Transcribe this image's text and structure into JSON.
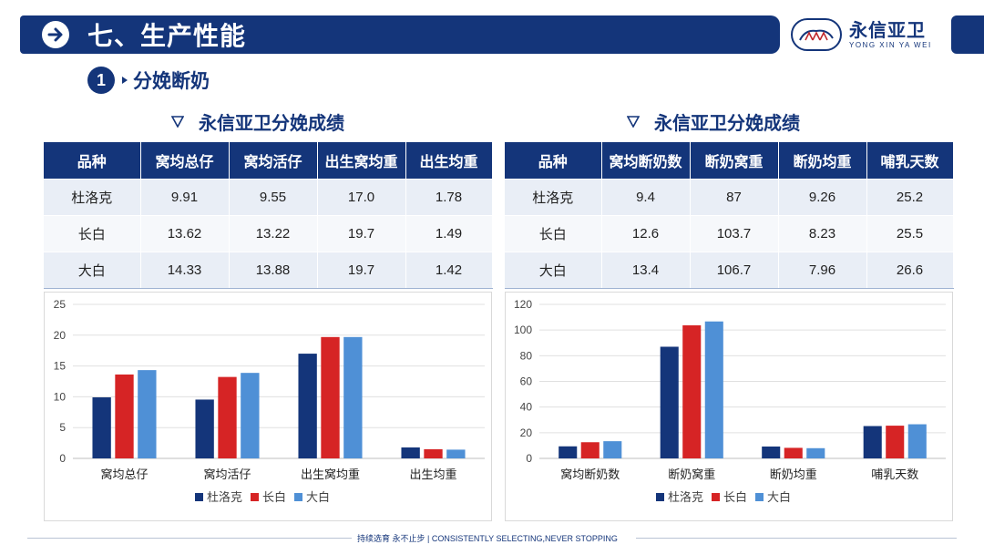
{
  "header": {
    "title": "七、生产性能"
  },
  "logo": {
    "cn": "永信亚卫",
    "en": "YONG XIN YA WEI"
  },
  "section": {
    "number": "1",
    "label": "分娩断奶"
  },
  "tables": [
    {
      "title": "永信亚卫分娩成绩",
      "columns": [
        "品种",
        "窝均总仔",
        "窝均活仔",
        "出生窝均重",
        "出生均重"
      ],
      "rows": [
        [
          "杜洛克",
          "9.91",
          "9.55",
          "17.0",
          "1.78"
        ],
        [
          "长白",
          "13.62",
          "13.22",
          "19.7",
          "1.49"
        ],
        [
          "大白",
          "14.33",
          "13.88",
          "19.7",
          "1.42"
        ]
      ]
    },
    {
      "title": "永信亚卫分娩成绩",
      "columns": [
        "品种",
        "窝均断奶数",
        "断奶窝重",
        "断奶均重",
        "哺乳天数"
      ],
      "rows": [
        [
          "杜洛克",
          "9.4",
          "87",
          "9.26",
          "25.2"
        ],
        [
          "长白",
          "12.6",
          "103.7",
          "8.23",
          "25.5"
        ],
        [
          "大白",
          "13.4",
          "106.7",
          "7.96",
          "26.6"
        ]
      ]
    }
  ],
  "chart_data": [
    {
      "type": "bar",
      "categories": [
        "窝均总仔",
        "窝均活仔",
        "出生窝均重",
        "出生均重"
      ],
      "series": [
        {
          "name": "杜洛克",
          "color": "#14357a",
          "values": [
            9.91,
            9.55,
            17.0,
            1.78
          ]
        },
        {
          "name": "长白",
          "color": "#d62425",
          "values": [
            13.62,
            13.22,
            19.7,
            1.49
          ]
        },
        {
          "name": "大白",
          "color": "#4f90d6",
          "values": [
            14.33,
            13.88,
            19.7,
            1.42
          ]
        }
      ],
      "ylim": [
        0,
        25
      ],
      "yticks": [
        0,
        5,
        10,
        15,
        20,
        25
      ],
      "grid": true,
      "legend": "bottom"
    },
    {
      "type": "bar",
      "categories": [
        "窝均断奶数",
        "断奶窝重",
        "断奶均重",
        "哺乳天数"
      ],
      "series": [
        {
          "name": "杜洛克",
          "color": "#14357a",
          "values": [
            9.4,
            87,
            9.26,
            25.2
          ]
        },
        {
          "name": "长白",
          "color": "#d62425",
          "values": [
            12.6,
            103.7,
            8.23,
            25.5
          ]
        },
        {
          "name": "大白",
          "color": "#4f90d6",
          "values": [
            13.4,
            106.7,
            7.96,
            26.6
          ]
        }
      ],
      "ylim": [
        0,
        120
      ],
      "yticks": [
        0,
        20,
        40,
        60,
        80,
        100,
        120
      ],
      "grid": true,
      "legend": "bottom"
    }
  ],
  "footer": {
    "text": "持续选育 永不止步 | CONSISTENTLY SELECTING,NEVER STOPPING"
  }
}
